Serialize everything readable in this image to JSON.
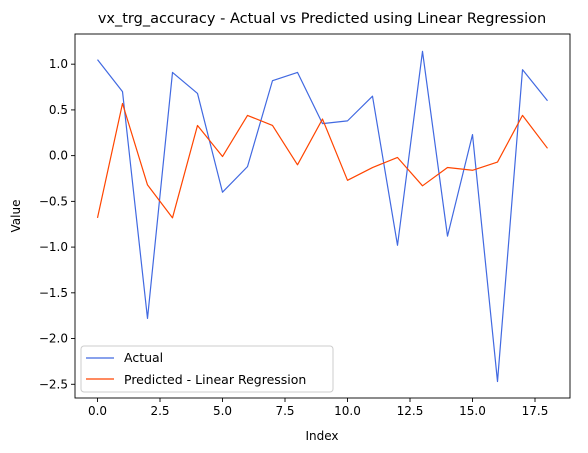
{
  "chart_data": {
    "type": "line",
    "title": "vx_trg_accuracy - Actual vs Predicted using Linear Regression",
    "xlabel": "Index",
    "ylabel": "Value",
    "xlim": [
      -0.9,
      18.9
    ],
    "ylim": [
      -2.65,
      1.33
    ],
    "xticks": [
      0.0,
      2.5,
      5.0,
      7.5,
      10.0,
      12.5,
      15.0,
      17.5
    ],
    "xtick_labels": [
      "0.0",
      "2.5",
      "5.0",
      "7.5",
      "10.0",
      "12.5",
      "15.0",
      "17.5"
    ],
    "yticks": [
      1.0,
      0.5,
      0.0,
      -0.5,
      -1.0,
      -1.5,
      -2.0,
      -2.5
    ],
    "ytick_labels": [
      "1.0",
      "0.5",
      "0.0",
      "−0.5",
      "−1.0",
      "−1.5",
      "−2.0",
      "−2.5"
    ],
    "legend_position": "lower-left",
    "x": [
      0,
      1,
      2,
      3,
      4,
      5,
      6,
      7,
      8,
      9,
      10,
      11,
      12,
      13,
      14,
      15,
      16,
      17,
      18
    ],
    "series": [
      {
        "name": "Actual",
        "color": "#4169e1",
        "values": [
          1.05,
          0.7,
          -1.78,
          0.91,
          0.68,
          -0.4,
          -0.12,
          0.82,
          0.91,
          0.35,
          0.38,
          0.65,
          -0.98,
          1.14,
          -0.88,
          0.23,
          -2.47,
          0.94,
          0.6
        ]
      },
      {
        "name": "Predicted - Linear Regression",
        "color": "#ff4500",
        "values": [
          -0.68,
          0.57,
          -0.32,
          -0.68,
          0.33,
          -0.01,
          0.44,
          0.33,
          -0.1,
          0.4,
          -0.27,
          -0.13,
          -0.02,
          -0.33,
          -0.13,
          -0.16,
          -0.07,
          0.44,
          0.08
        ]
      }
    ]
  }
}
